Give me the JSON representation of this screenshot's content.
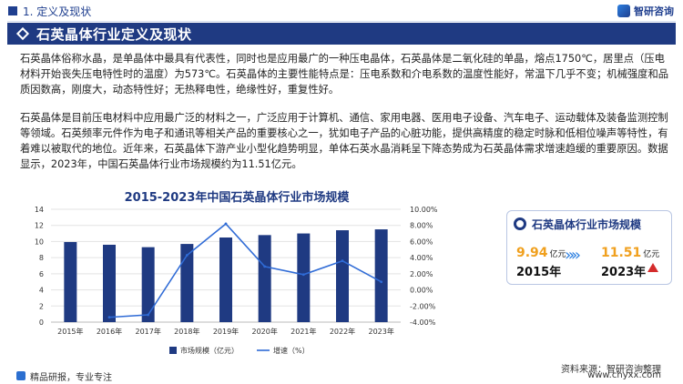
{
  "header": {
    "section": "1. 定义及现状",
    "brand": "智研咨询",
    "banner_title": "石英晶体行业定义及现状"
  },
  "paragraphs": {
    "p1": "石英晶体俗称水晶，是单晶体中最具有代表性，同时也是应用最广的一种压电晶体，石英晶体是二氧化硅的单晶，熔点1750℃，居里点（压电材料开始丧失压电特性时的温度）为573℃。石英晶体的主要性能特点是：压电系数和介电系数的温度性能好，常温下几乎不变；机械强度和品质因数高，刚度大，动态特性好；无热释电性，绝缘性好，重复性好。",
    "p2": "石英晶体是目前压电材料中应用最广泛的材料之一，广泛应用于计算机、通信、家用电器、医用电子设备、汽车电子、运动载体及装备监测控制等领域。石英频率元件作为电子和通讯等相关产品的重要核心之一，犹如电子产品的心脏功能，提供高精度的稳定时脉和低相位噪声等特性，有着难以被取代的地位。近年来，石英晶体下游产业小型化趋势明显，单体石英水晶消耗呈下降态势成为石英晶体需求增速趋缓的重要原因。数据显示，2023年，中国石英晶体行业市场规模约为11.51亿元。"
  },
  "chart_data": {
    "type": "bar",
    "title": "2015-2023年中国石英晶体行业市场规模",
    "categories": [
      "2015年",
      "2016年",
      "2017年",
      "2018年",
      "2019年",
      "2020年",
      "2021年",
      "2022年",
      "2023年"
    ],
    "series": [
      {
        "name": "市场规模（亿元）",
        "type": "bar",
        "axis": "left",
        "values": [
          9.94,
          9.6,
          9.3,
          9.7,
          10.5,
          10.8,
          11.0,
          11.4,
          11.51
        ]
      },
      {
        "name": "增速（%）",
        "type": "line",
        "axis": "right",
        "values": [
          null,
          -3.4,
          -3.1,
          4.3,
          8.2,
          2.9,
          1.9,
          3.6,
          1.0
        ]
      }
    ],
    "ylim_left": [
      0,
      14
    ],
    "yticks_left": [
      "0",
      "2",
      "4",
      "6",
      "8",
      "10",
      "12",
      "14"
    ],
    "ylim_right": [
      -4,
      10
    ],
    "yticks_right": [
      "-4.00%",
      "-2.00%",
      "0.00%",
      "2.00%",
      "4.00%",
      "6.00%",
      "8.00%",
      "10.00%"
    ],
    "legend_position": "bottom",
    "colors": {
      "bar": "#1f3a82",
      "line": "#2f6bd6"
    }
  },
  "card": {
    "title": "石英晶体行业市场规模",
    "start_value": "9.94",
    "start_unit": "亿元",
    "start_year": "2015年",
    "end_value": "11.51",
    "end_unit": "亿元",
    "end_year": "2023年",
    "arrow_glyph": "»»"
  },
  "footer": {
    "left": "精品研报，专业专注",
    "source": "资料来源：智研咨询整理",
    "site": "www.chyxx.com"
  }
}
